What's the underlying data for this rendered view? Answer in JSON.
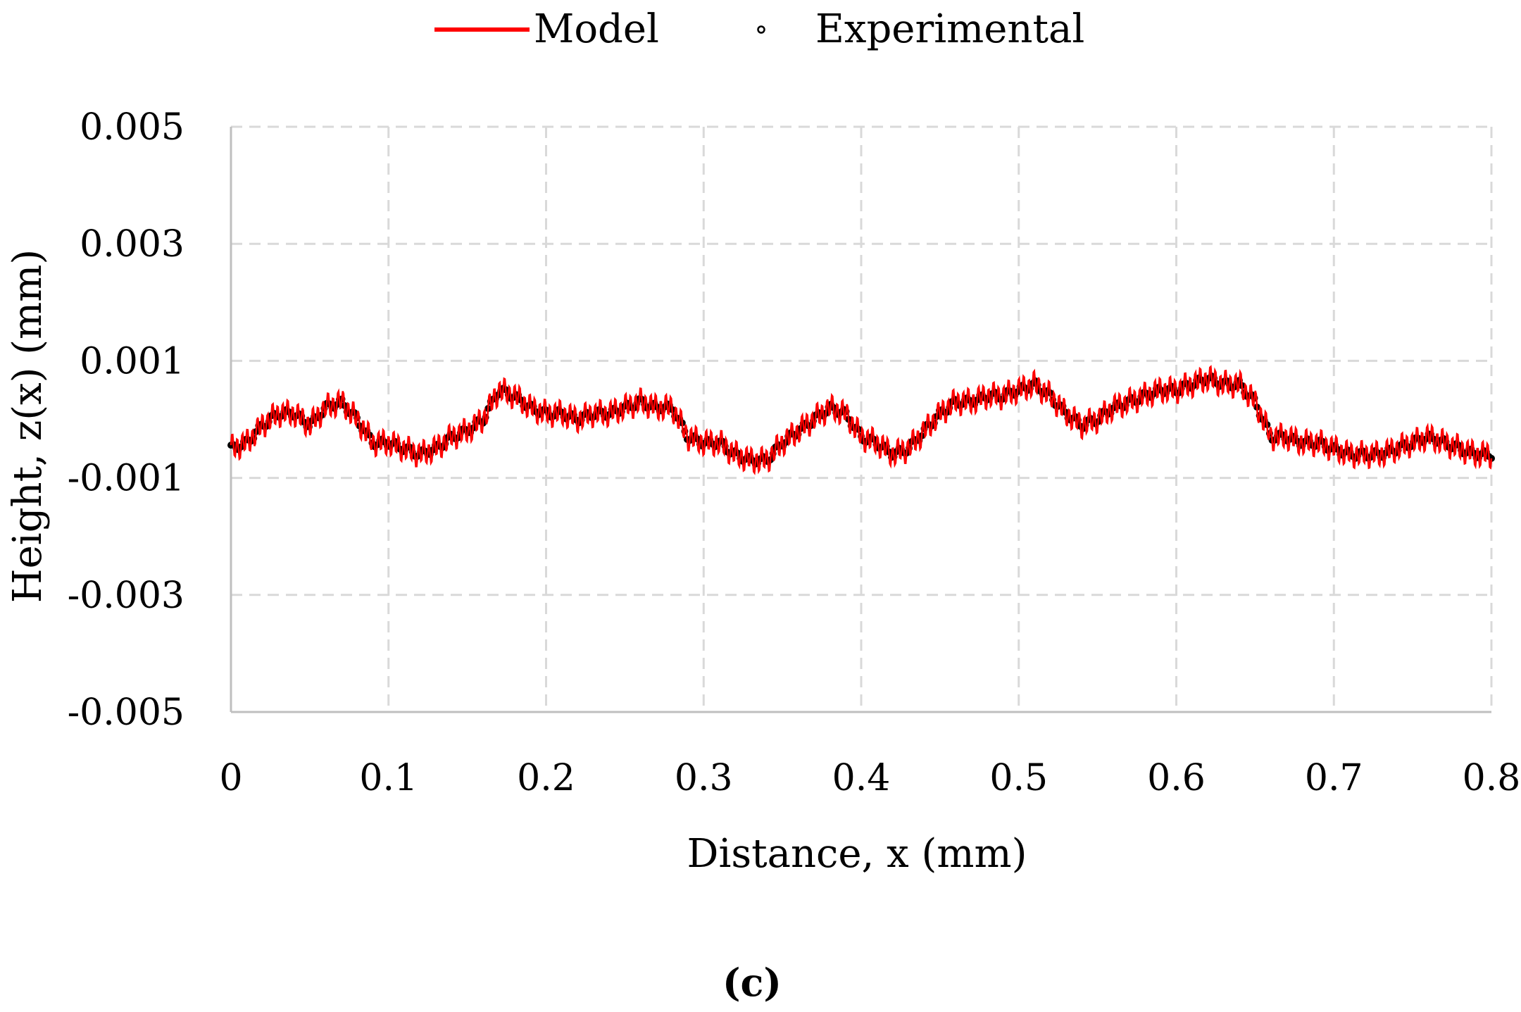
{
  "chart_data": {
    "type": "line",
    "title": "",
    "panel_label": "(c)",
    "xlabel": "Distance, x (mm)",
    "ylabel": "Height, z(x) (mm)",
    "xlim": [
      0,
      0.8
    ],
    "ylim": [
      -0.005,
      0.005
    ],
    "x_ticks": [
      0,
      0.1,
      0.2,
      0.3,
      0.4,
      0.5,
      0.6,
      0.7,
      0.8
    ],
    "x_tick_labels": [
      "0",
      "0.1",
      "0.2",
      "0.3",
      "0.4",
      "0.5",
      "0.6",
      "0.7",
      "0.8"
    ],
    "y_ticks": [
      0.005,
      0.003,
      0.001,
      -0.001,
      -0.003,
      -0.005
    ],
    "y_tick_labels": [
      "0.005",
      "0.003",
      "0.001",
      "-0.001",
      "-0.003",
      "-0.005"
    ],
    "grid": true,
    "legend_position": "top-center",
    "legend": [
      "Model",
      "Experimental"
    ],
    "colors": {
      "model": "#ff0000",
      "experimental": "#000000",
      "grid": "#d9d9d9",
      "axis": "#bfbfbf"
    },
    "trend": {
      "x": [
        0,
        0.01,
        0.02,
        0.03,
        0.04,
        0.05,
        0.06,
        0.07,
        0.08,
        0.09,
        0.1,
        0.11,
        0.12,
        0.13,
        0.14,
        0.15,
        0.16,
        0.17,
        0.18,
        0.19,
        0.2,
        0.21,
        0.22,
        0.23,
        0.24,
        0.25,
        0.26,
        0.27,
        0.28,
        0.29,
        0.3,
        0.31,
        0.32,
        0.33,
        0.34,
        0.35,
        0.36,
        0.37,
        0.38,
        0.39,
        0.4,
        0.41,
        0.42,
        0.43,
        0.44,
        0.45,
        0.46,
        0.47,
        0.48,
        0.49,
        0.5,
        0.51,
        0.52,
        0.53,
        0.54,
        0.55,
        0.56,
        0.57,
        0.58,
        0.59,
        0.6,
        0.61,
        0.62,
        0.63,
        0.64,
        0.65,
        0.66,
        0.67,
        0.68,
        0.69,
        0.7,
        0.71,
        0.72,
        0.73,
        0.74,
        0.75,
        0.76,
        0.77,
        0.78,
        0.79,
        0.8
      ],
      "y": [
        -0.0005,
        -0.0004,
        -0.0001,
        0.0001,
        0.0001,
        -0.0001,
        0.0002,
        0.0003,
        0.0,
        -0.0004,
        -0.0004,
        -0.0005,
        -0.0006,
        -0.0005,
        -0.0003,
        -0.0002,
        0.0,
        0.0005,
        0.0004,
        0.0002,
        0.0001,
        0.0001,
        0.0,
        0.0001,
        0.0001,
        0.0002,
        0.0003,
        0.0002,
        0.0002,
        -0.0003,
        -0.0004,
        -0.0004,
        -0.0006,
        -0.0007,
        -0.0007,
        -0.0004,
        -0.0002,
        0.0,
        0.0002,
        0.0001,
        -0.0003,
        -0.0004,
        -0.0006,
        -0.0005,
        -0.0002,
        0.0001,
        0.0003,
        0.0003,
        0.0004,
        0.0004,
        0.0005,
        0.0006,
        0.0004,
        0.0001,
        -0.0001,
        0.0,
        0.0002,
        0.0003,
        0.0004,
        0.0005,
        0.0005,
        0.0006,
        0.0007,
        0.0006,
        0.0006,
        0.0003,
        -0.0003,
        -0.0003,
        -0.0004,
        -0.0004,
        -0.0005,
        -0.0006,
        -0.0006,
        -0.0006,
        -0.0005,
        -0.0004,
        -0.0003,
        -0.0004,
        -0.0005,
        -0.0006,
        -0.0006
      ]
    },
    "series": [
      {
        "name": "Model",
        "style": "line",
        "roughness_amplitude": 0.00019,
        "roughness_period": 0.0032
      },
      {
        "name": "Experimental",
        "style": "markers",
        "sampling_interval": 0.0016
      }
    ]
  }
}
